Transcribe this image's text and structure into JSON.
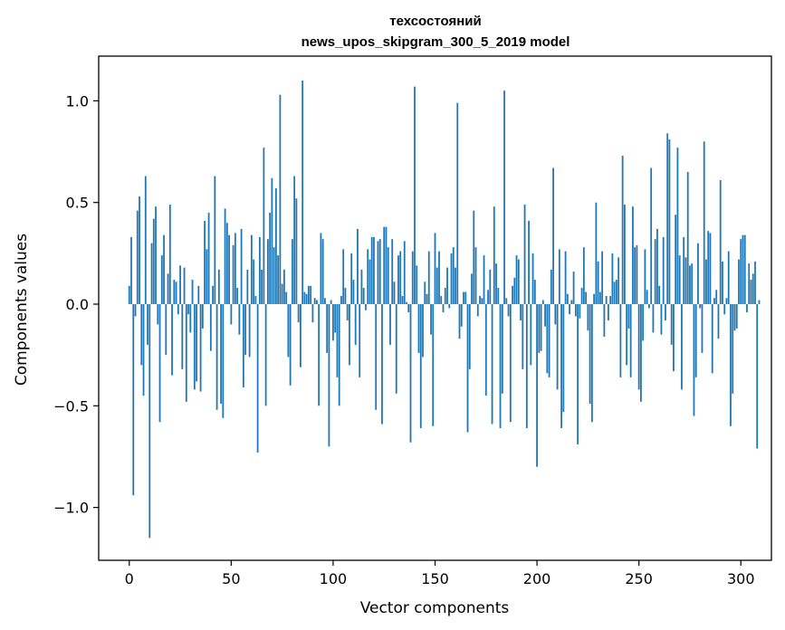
{
  "chart_data": {
    "type": "bar",
    "title": "техсостояний",
    "subtitle": "news_upos_skipgram_300_5_2019 model",
    "xlabel": "Vector components",
    "ylabel": "Components values",
    "xlim": [
      -15,
      315
    ],
    "ylim": [
      -1.26,
      1.22
    ],
    "xticks": [
      0,
      50,
      100,
      150,
      200,
      250,
      300
    ],
    "xtick_labels": [
      "0",
      "50",
      "100",
      "150",
      "200",
      "250",
      "300"
    ],
    "yticks": [
      -1.0,
      -0.5,
      0.0,
      0.5,
      1.0
    ],
    "ytick_labels": [
      "−1.0",
      "−0.5",
      "0.0",
      "0.5",
      "1.0"
    ],
    "bar_color": "#1f77b4",
    "grid": false,
    "values": [
      0.09,
      0.33,
      -0.94,
      -0.06,
      0.46,
      0.53,
      -0.3,
      -0.45,
      0.63,
      -0.2,
      -1.15,
      0.3,
      0.42,
      0.48,
      -0.1,
      -0.58,
      0.24,
      0.34,
      -0.25,
      0.15,
      0.49,
      -0.35,
      0.12,
      0.11,
      -0.05,
      0.19,
      -0.32,
      0.18,
      -0.48,
      -0.05,
      -0.14,
      0.12,
      -0.42,
      -0.38,
      0.09,
      -0.43,
      -0.12,
      0.41,
      0.27,
      0.45,
      -0.23,
      0.09,
      0.63,
      -0.52,
      0.17,
      -0.49,
      -0.56,
      0.47,
      0.4,
      0.34,
      -0.1,
      0.29,
      0.35,
      0.08,
      -0.15,
      0.37,
      -0.41,
      -0.25,
      0.17,
      -0.26,
      0.34,
      0.22,
      0.04,
      -0.73,
      0.33,
      0.17,
      0.77,
      -0.5,
      0.32,
      0.45,
      0.62,
      0.28,
      0.57,
      0.24,
      1.03,
      0.1,
      0.17,
      0.06,
      -0.26,
      -0.4,
      0.32,
      0.63,
      0.52,
      -0.09,
      -0.31,
      1.1,
      0.06,
      0.05,
      0.09,
      0.09,
      -0.09,
      0.03,
      0.02,
      -0.5,
      0.35,
      0.32,
      0.03,
      -0.24,
      -0.7,
      0.02,
      -0.18,
      -0.14,
      -0.36,
      -0.5,
      0.04,
      0.27,
      0.08,
      -0.08,
      -0.3,
      0.25,
      0.12,
      -0.2,
      0.37,
      -0.36,
      0.17,
      0.08,
      -0.03,
      0.27,
      0.22,
      0.33,
      0.33,
      -0.52,
      0.31,
      0.32,
      -0.59,
      0.38,
      0.38,
      0.28,
      -0.2,
      0.32,
      0.11,
      -0.44,
      0.24,
      0.26,
      0.04,
      0.31,
      0.01,
      -0.04,
      -0.68,
      0.26,
      1.07,
      0.19,
      -0.24,
      -0.61,
      -0.26,
      0.11,
      0.05,
      0.26,
      -0.15,
      -0.6,
      0.35,
      0.18,
      0.26,
      0.04,
      -0.04,
      0.08,
      0.18,
      -0.02,
      0.25,
      0.28,
      0.18,
      0.99,
      -0.17,
      -0.11,
      0.06,
      0.06,
      -0.63,
      -0.32,
      0.15,
      0.46,
      0.28,
      -0.06,
      0.04,
      0.03,
      0.24,
      -0.45,
      0.07,
      0.17,
      -0.59,
      0.48,
      0.2,
      0.08,
      -0.61,
      -0.44,
      1.05,
      0.03,
      -0.06,
      -0.58,
      0.09,
      0.13,
      0.24,
      0.22,
      -0.08,
      -0.32,
      0.49,
      -0.61,
      0.41,
      -0.3,
      0.25,
      0.12,
      -0.8,
      -0.24,
      -0.23,
      0.02,
      -0.11,
      -0.34,
      -0.36,
      0.17,
      0.67,
      -0.1,
      -0.42,
      0.27,
      -0.61,
      -0.53,
      0.26,
      0.05,
      -0.05,
      0.02,
      0.16,
      -0.06,
      -0.69,
      -0.07,
      0.08,
      0.28,
      0.06,
      -0.13,
      -0.49,
      -0.58,
      0.05,
      0.5,
      0.21,
      0.06,
      0.26,
      -0.16,
      0.04,
      -0.08,
      0.04,
      0.25,
      0.11,
      0.12,
      0.23,
      -0.36,
      0.73,
      0.49,
      -0.3,
      -0.12,
      -0.36,
      0.48,
      0.28,
      0.29,
      -0.42,
      -0.48,
      -0.18,
      0.27,
      0.07,
      -0.02,
      0.67,
      -0.14,
      0.32,
      0.37,
      0.09,
      -0.15,
      0.33,
      -0.08,
      0.84,
      0.81,
      -0.2,
      -0.33,
      0.44,
      0.77,
      0.24,
      -0.42,
      0.33,
      0.23,
      0.65,
      0.19,
      0.2,
      -0.55,
      -0.36,
      0.3,
      -0.02,
      -0.24,
      0.8,
      0.22,
      0.36,
      0.35,
      -0.34,
      0.03,
      0.07,
      -0.17,
      0.61,
      0.21,
      -0.05,
      0.03,
      0.26,
      -0.6,
      -0.44,
      -0.13,
      -0.12,
      0.22,
      0.32,
      0.34,
      0.34,
      -0.04,
      0.2,
      0.12,
      0.15,
      0.21,
      -0.71,
      0.02
    ]
  }
}
